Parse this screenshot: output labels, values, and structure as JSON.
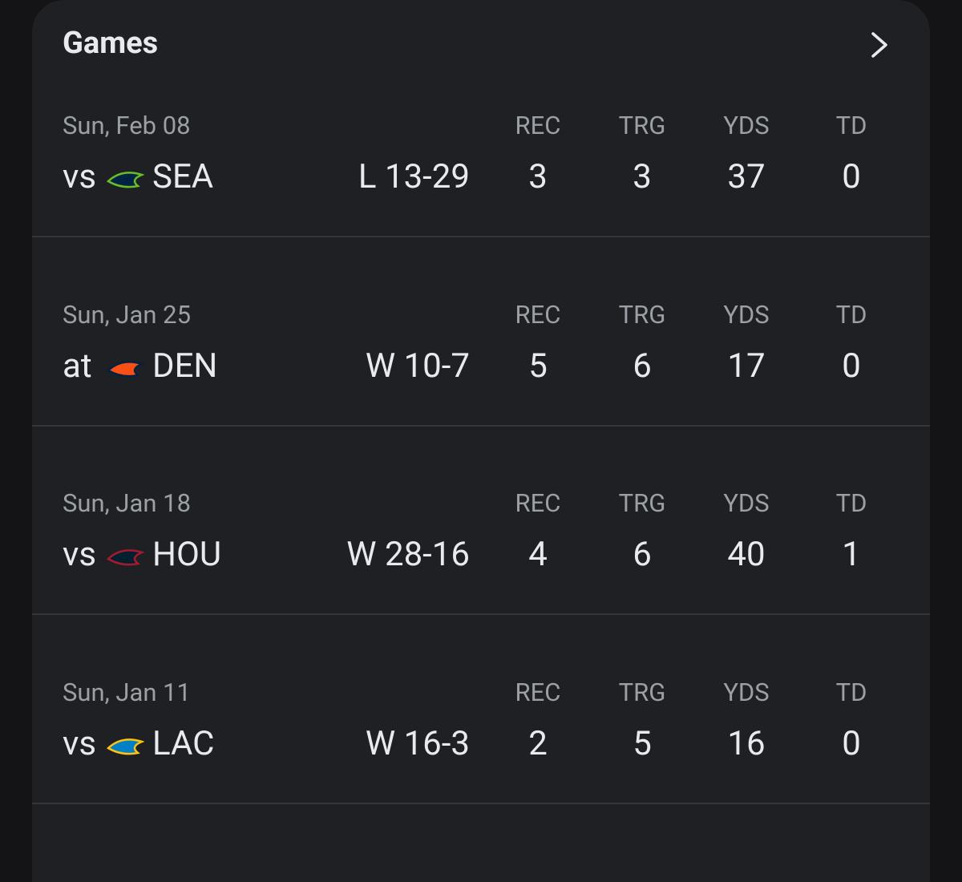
{
  "header": {
    "title": "Games"
  },
  "stat_labels": [
    "REC",
    "TRG",
    "YDS",
    "TD"
  ],
  "games": [
    {
      "date": "Sun, Feb 08",
      "location": "vs",
      "team": "SEA",
      "result": "L 13-29",
      "stats": [
        3,
        3,
        37,
        0
      ]
    },
    {
      "date": "Sun, Jan 25",
      "location": "at",
      "team": "DEN",
      "result": "W 10-7",
      "stats": [
        5,
        6,
        17,
        0
      ]
    },
    {
      "date": "Sun, Jan 18",
      "location": "vs",
      "team": "HOU",
      "result": "W 28-16",
      "stats": [
        4,
        6,
        40,
        1
      ]
    },
    {
      "date": "Sun, Jan 11",
      "location": "vs",
      "team": "LAC",
      "result": "W 16-3",
      "stats": [
        2,
        5,
        16,
        0
      ]
    }
  ]
}
